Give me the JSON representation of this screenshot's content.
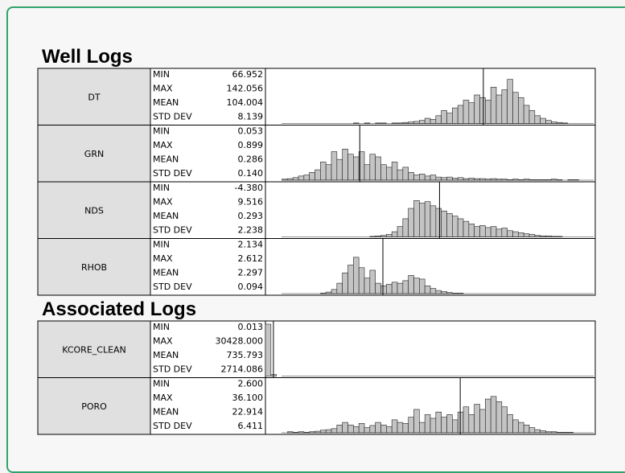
{
  "hist_ylim": [
    0,
    100
  ],
  "sections": [
    {
      "title": "Well Logs",
      "logs": [
        {
          "name": "DT",
          "stats": [
            {
              "label": "MIN",
              "value": "66.952"
            },
            {
              "label": "MAX",
              "value": "142.056"
            },
            {
              "label": "MEAN",
              "value": "104.004"
            },
            {
              "label": "STD DEV",
              "value": "8.139"
            }
          ],
          "xlim": [
            30,
            142
          ],
          "counts": [
            0,
            0,
            0,
            0,
            0,
            0,
            0,
            0,
            0,
            0,
            0,
            0,
            0,
            0,
            0,
            0,
            1,
            0,
            1,
            0,
            1,
            1,
            0,
            1,
            1,
            2,
            3,
            4,
            6,
            10,
            8,
            15,
            25,
            20,
            30,
            35,
            45,
            40,
            55,
            50,
            45,
            70,
            55,
            65,
            85,
            60,
            50,
            35,
            25,
            15,
            10,
            6,
            3,
            2,
            1,
            0,
            0,
            0,
            0,
            0
          ]
        },
        {
          "name": "GRN",
          "stats": [
            {
              "label": "MIN",
              "value": "0.053"
            },
            {
              "label": "MAX",
              "value": "0.899"
            },
            {
              "label": "MEAN",
              "value": "0.286"
            },
            {
              "label": "STD DEV",
              "value": "0.140"
            }
          ],
          "xlim": [
            0,
            1
          ],
          "counts": [
            0,
            0,
            0,
            2,
            3,
            5,
            8,
            10,
            15,
            20,
            35,
            30,
            55,
            40,
            60,
            50,
            45,
            55,
            30,
            50,
            45,
            30,
            25,
            35,
            20,
            25,
            15,
            10,
            12,
            8,
            10,
            6,
            5,
            6,
            4,
            5,
            3,
            4,
            3,
            3,
            2,
            3,
            2,
            2,
            1,
            2,
            1,
            2,
            1,
            1,
            1,
            1,
            2,
            1,
            0,
            1,
            1,
            0,
            0,
            0
          ]
        },
        {
          "name": "NDS",
          "stats": [
            {
              "label": "MIN",
              "value": "-4.380"
            },
            {
              "label": "MAX",
              "value": "9.516"
            },
            {
              "label": "MEAN",
              "value": "0.293"
            },
            {
              "label": "STD DEV",
              "value": "2.238"
            }
          ],
          "xlim": [
            -10,
            9.5
          ],
          "counts": [
            0,
            0,
            0,
            0,
            0,
            0,
            0,
            0,
            0,
            0,
            0,
            0,
            0,
            0,
            0,
            0,
            0,
            0,
            0,
            1,
            2,
            3,
            5,
            10,
            20,
            35,
            55,
            70,
            65,
            68,
            60,
            55,
            50,
            45,
            40,
            35,
            30,
            25,
            20,
            22,
            18,
            20,
            15,
            17,
            12,
            10,
            8,
            6,
            5,
            3,
            2,
            2,
            1,
            1,
            0,
            0,
            0,
            0,
            0,
            0
          ]
        },
        {
          "name": "RHOB",
          "stats": [
            {
              "label": "MIN",
              "value": "2.134"
            },
            {
              "label": "MAX",
              "value": "2.612"
            },
            {
              "label": "MEAN",
              "value": "2.297"
            },
            {
              "label": "STD DEV",
              "value": "0.094"
            }
          ],
          "xlim": [
            2.0,
            2.834
          ],
          "counts": [
            0,
            0,
            0,
            0,
            0,
            0,
            0,
            0,
            0,
            0,
            1,
            3,
            8,
            20,
            40,
            55,
            70,
            50,
            30,
            45,
            20,
            15,
            18,
            22,
            20,
            25,
            35,
            30,
            28,
            15,
            10,
            6,
            4,
            2,
            1,
            1,
            0,
            0,
            0,
            0,
            0,
            0,
            0,
            0,
            0,
            0,
            0,
            0,
            0,
            0,
            0,
            0,
            0,
            0,
            0,
            0,
            0,
            0,
            0,
            0
          ]
        }
      ]
    },
    {
      "title": "Associated Logs",
      "logs": [
        {
          "name": "KCORE_CLEAN",
          "stats": [
            {
              "label": "MIN",
              "value": "0.013"
            },
            {
              "label": "MAX",
              "value": "30428.000"
            },
            {
              "label": "MEAN",
              "value": "735.793"
            },
            {
              "label": "STD DEV",
              "value": "2714.086"
            }
          ],
          "xlim": [
            0,
            30428
          ],
          "counts": [
            100,
            3,
            0,
            0,
            0,
            0,
            0,
            0,
            0,
            0,
            0,
            0,
            0,
            0,
            0,
            0,
            0,
            0,
            0,
            0,
            0,
            0,
            0,
            0,
            0,
            0,
            0,
            0,
            0,
            0,
            0,
            0,
            0,
            0,
            0,
            0,
            0,
            0,
            0,
            0,
            0,
            0,
            0,
            0,
            0,
            0,
            0,
            0,
            0,
            0,
            0,
            0,
            0,
            0,
            0,
            0,
            0,
            0,
            0,
            0
          ]
        },
        {
          "name": "PORO",
          "stats": [
            {
              "label": "MIN",
              "value": "2.600"
            },
            {
              "label": "MAX",
              "value": "36.100"
            },
            {
              "label": "MEAN",
              "value": "22.914"
            },
            {
              "label": "STD DEV",
              "value": "6.411"
            }
          ],
          "xlim": [
            0,
            38.8
          ],
          "counts": [
            0,
            0,
            0,
            0,
            2,
            1,
            2,
            1,
            2,
            3,
            5,
            6,
            8,
            15,
            20,
            15,
            12,
            18,
            10,
            14,
            20,
            15,
            12,
            25,
            20,
            18,
            30,
            45,
            20,
            35,
            28,
            40,
            30,
            35,
            25,
            40,
            50,
            35,
            55,
            45,
            65,
            70,
            60,
            50,
            35,
            25,
            20,
            15,
            10,
            6,
            4,
            2,
            2,
            1,
            1,
            1,
            0,
            0,
            0,
            0
          ]
        }
      ]
    }
  ]
}
